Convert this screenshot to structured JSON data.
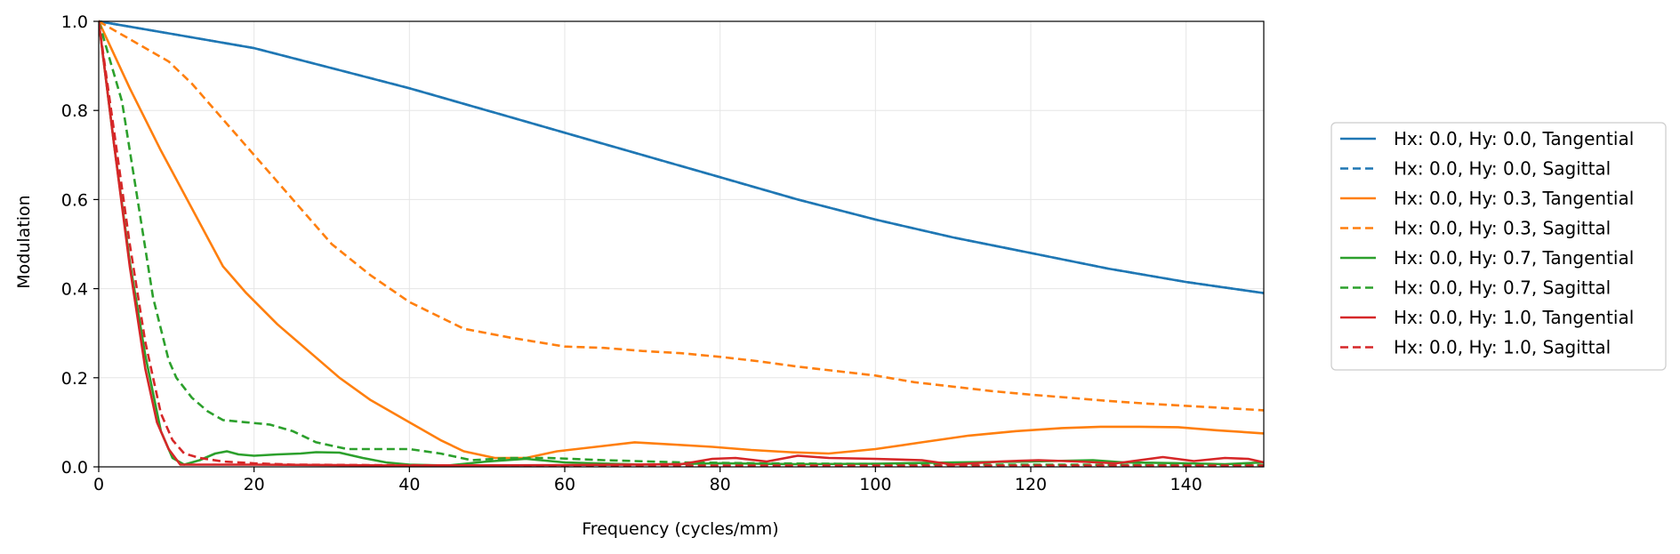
{
  "chart_data": {
    "type": "line",
    "title": "",
    "xlabel": "Frequency (cycles/mm)",
    "ylabel": "Modulation",
    "xlim": [
      0,
      150
    ],
    "ylim": [
      0,
      1.0
    ],
    "xticks": [
      0,
      20,
      40,
      60,
      80,
      100,
      120,
      140
    ],
    "xtick_labels": [
      "0",
      "20",
      "40",
      "60",
      "80",
      "100",
      "120",
      "140"
    ],
    "yticks": [
      0,
      0.2,
      0.4,
      0.6,
      0.8,
      1.0
    ],
    "ytick_labels": [
      "0.0",
      "0.2",
      "0.4",
      "0.6",
      "0.8",
      "1.0"
    ],
    "grid": true,
    "legend_position": "right",
    "series": [
      {
        "name": "Hx: 0.0, Hy: 0.0, Tangential",
        "color": "#1f77b4",
        "dash": "solid",
        "x": [
          0,
          10,
          20,
          30,
          40,
          50,
          60,
          70,
          80,
          90,
          100,
          110,
          120,
          130,
          140,
          150
        ],
        "y": [
          1.0,
          0.97,
          0.94,
          0.895,
          0.85,
          0.8,
          0.75,
          0.7,
          0.65,
          0.6,
          0.555,
          0.515,
          0.48,
          0.445,
          0.415,
          0.39
        ]
      },
      {
        "name": "Hx: 0.0, Hy: 0.0, Sagittal",
        "color": "#1f77b4",
        "dash": "dashed",
        "x": [
          0,
          10,
          20,
          30,
          40,
          50,
          60,
          70,
          80,
          90,
          100,
          110,
          120,
          130,
          140,
          150
        ],
        "y": [
          1.0,
          0.97,
          0.94,
          0.895,
          0.85,
          0.8,
          0.75,
          0.7,
          0.65,
          0.6,
          0.555,
          0.515,
          0.48,
          0.445,
          0.415,
          0.39
        ]
      },
      {
        "name": "Hx: 0.0, Hy: 0.3, Tangential",
        "color": "#ff7f0e",
        "dash": "solid",
        "x": [
          0,
          4,
          8,
          12,
          16,
          19,
          23,
          27,
          31,
          35,
          40,
          44,
          47,
          51,
          55,
          59,
          64,
          69,
          74,
          79,
          84,
          89,
          94,
          100,
          106,
          112,
          118,
          124,
          129,
          134,
          139,
          144,
          150
        ],
        "y": [
          1.0,
          0.85,
          0.71,
          0.58,
          0.45,
          0.39,
          0.32,
          0.26,
          0.2,
          0.15,
          0.1,
          0.06,
          0.035,
          0.02,
          0.02,
          0.035,
          0.045,
          0.055,
          0.05,
          0.045,
          0.038,
          0.033,
          0.03,
          0.04,
          0.055,
          0.07,
          0.08,
          0.087,
          0.09,
          0.09,
          0.089,
          0.082,
          0.075
        ]
      },
      {
        "name": "Hx: 0.0, Hy: 0.3, Sagittal",
        "color": "#ff7f0e",
        "dash": "dashed",
        "x": [
          0,
          5,
          9,
          12,
          16,
          20,
          25,
          30,
          35,
          40,
          47,
          53,
          60,
          65,
          70,
          75,
          80,
          85,
          90,
          95,
          100,
          105,
          110,
          115,
          120,
          125,
          130,
          135,
          140,
          145,
          150
        ],
        "y": [
          1.0,
          0.95,
          0.91,
          0.86,
          0.78,
          0.7,
          0.6,
          0.5,
          0.43,
          0.37,
          0.31,
          0.29,
          0.27,
          0.267,
          0.26,
          0.255,
          0.247,
          0.237,
          0.225,
          0.215,
          0.205,
          0.19,
          0.18,
          0.17,
          0.162,
          0.155,
          0.148,
          0.142,
          0.137,
          0.132,
          0.127
        ]
      },
      {
        "name": "Hx: 0.0, Hy: 0.7, Tangential",
        "color": "#2ca02c",
        "dash": "solid",
        "x": [
          0,
          2,
          4,
          6,
          8,
          9.5,
          11,
          13,
          15,
          16.5,
          18,
          20,
          23,
          26,
          28,
          31,
          34,
          37,
          40,
          45,
          50,
          55,
          60,
          70,
          80,
          90,
          100,
          110,
          120,
          128,
          132,
          140,
          145,
          150
        ],
        "y": [
          1.0,
          0.72,
          0.46,
          0.25,
          0.08,
          0.02,
          0.005,
          0.015,
          0.03,
          0.035,
          0.028,
          0.025,
          0.028,
          0.03,
          0.033,
          0.032,
          0.02,
          0.01,
          0.005,
          0.003,
          0.012,
          0.018,
          0.01,
          0.005,
          0.008,
          0.006,
          0.007,
          0.01,
          0.012,
          0.015,
          0.01,
          0.008,
          0.006,
          0.01
        ]
      },
      {
        "name": "Hx: 0.0, Hy: 0.7, Sagittal",
        "color": "#2ca02c",
        "dash": "dashed",
        "x": [
          0,
          3,
          5,
          7,
          9,
          10,
          12,
          14,
          16,
          19,
          22,
          25,
          28,
          32,
          36,
          40,
          44,
          48,
          53,
          58,
          65,
          75,
          85,
          95,
          105,
          115,
          125,
          135,
          145,
          150
        ],
        "y": [
          1.0,
          0.82,
          0.6,
          0.38,
          0.24,
          0.2,
          0.155,
          0.125,
          0.105,
          0.1,
          0.095,
          0.08,
          0.055,
          0.04,
          0.04,
          0.04,
          0.03,
          0.015,
          0.02,
          0.02,
          0.015,
          0.01,
          0.008,
          0.007,
          0.006,
          0.005,
          0.005,
          0.004,
          0.004,
          0.004
        ]
      },
      {
        "name": "Hx: 0.0, Hy: 1.0, Tangential",
        "color": "#d62728",
        "dash": "solid",
        "x": [
          0,
          2,
          4,
          6,
          7.5,
          9,
          10.5,
          12,
          20,
          40,
          60,
          75,
          79,
          82,
          86,
          90,
          94,
          100,
          106,
          110,
          116,
          121,
          126,
          131,
          137,
          141,
          145,
          148,
          150
        ],
        "y": [
          1.0,
          0.72,
          0.45,
          0.22,
          0.1,
          0.04,
          0.005,
          0.005,
          0.005,
          0.003,
          0.004,
          0.006,
          0.018,
          0.02,
          0.012,
          0.025,
          0.02,
          0.018,
          0.015,
          0.005,
          0.012,
          0.015,
          0.012,
          0.008,
          0.022,
          0.013,
          0.02,
          0.018,
          0.01
        ]
      },
      {
        "name": "Hx: 0.0, Hy: 1.0, Sagittal",
        "color": "#d62728",
        "dash": "dashed",
        "x": [
          0,
          2,
          4,
          6,
          8,
          9.5,
          11,
          13,
          16,
          20,
          25,
          35,
          50,
          70,
          90,
          110,
          130,
          150
        ],
        "y": [
          1.0,
          0.75,
          0.5,
          0.28,
          0.12,
          0.06,
          0.03,
          0.02,
          0.012,
          0.008,
          0.005,
          0.004,
          0.003,
          0.003,
          0.003,
          0.003,
          0.003,
          0.003
        ]
      }
    ]
  }
}
